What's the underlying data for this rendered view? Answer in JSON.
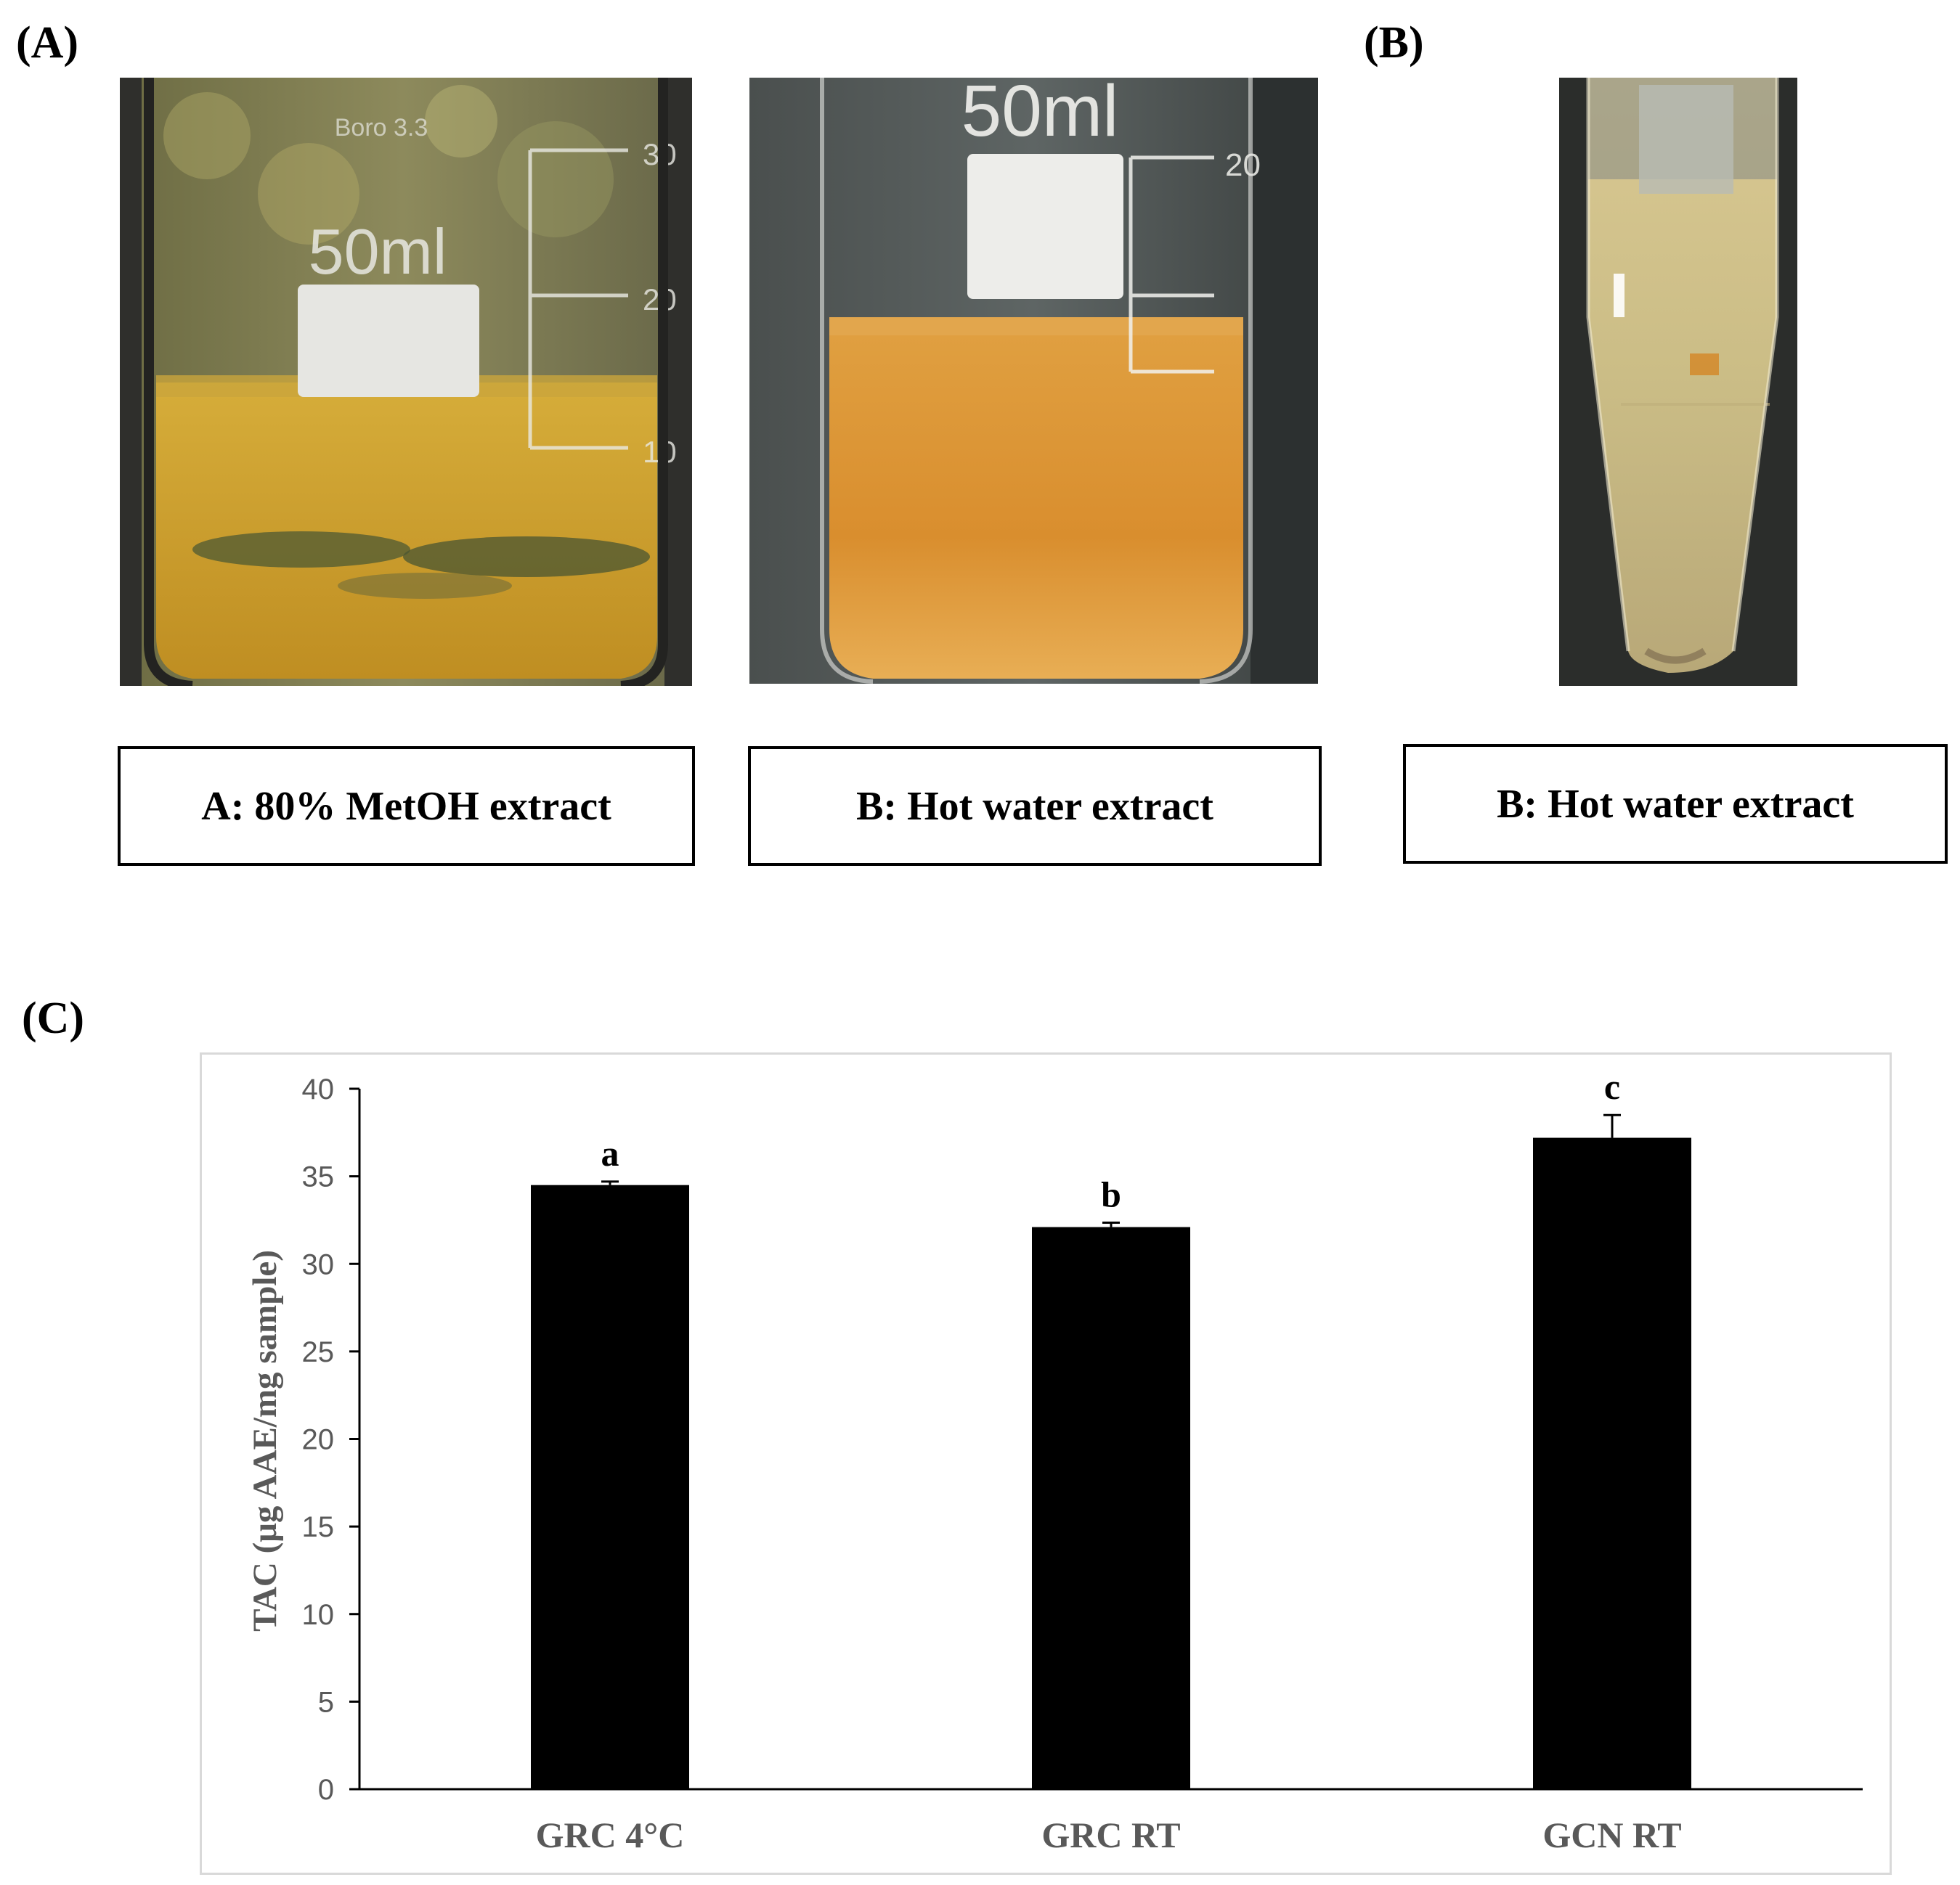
{
  "panels": {
    "a_label": "(A)",
    "b_label": "(B)",
    "c_label": "(C)"
  },
  "photos": {
    "beaker1": {
      "volume_mark": "50ml",
      "brand_mark": "Boro 3.3",
      "scale_marks": [
        "30",
        "20",
        "10"
      ]
    },
    "beaker2": {
      "volume_mark": "50ml",
      "scale_marks": [
        "20"
      ]
    },
    "tube": {}
  },
  "captions": {
    "beaker1": "A: 80% MetOH extract",
    "beaker2": "B: Hot water extract",
    "tube": "B: Hot water extract"
  },
  "colors": {
    "bar": "#000000",
    "axis": "#000000",
    "tick_text": "#595959",
    "frame": "#d9d9d9",
    "methanol_extract": "#c89a2a",
    "water_extract": "#d98e2e"
  },
  "chart_data": {
    "type": "bar",
    "categories": [
      "GRC 4°C",
      "GRC RT",
      "GCN RT"
    ],
    "values": [
      34.5,
      32.1,
      37.2
    ],
    "errors": [
      0.2,
      0.25,
      1.3
    ],
    "significance": [
      "a",
      "b",
      "c"
    ],
    "ylabel": "TAC  (μg AAE/mg sample)",
    "xlabel": "",
    "ylim": [
      0,
      40
    ],
    "yticks": [
      0,
      5,
      10,
      15,
      20,
      25,
      30,
      35,
      40
    ],
    "grid": false,
    "legend": "none"
  }
}
